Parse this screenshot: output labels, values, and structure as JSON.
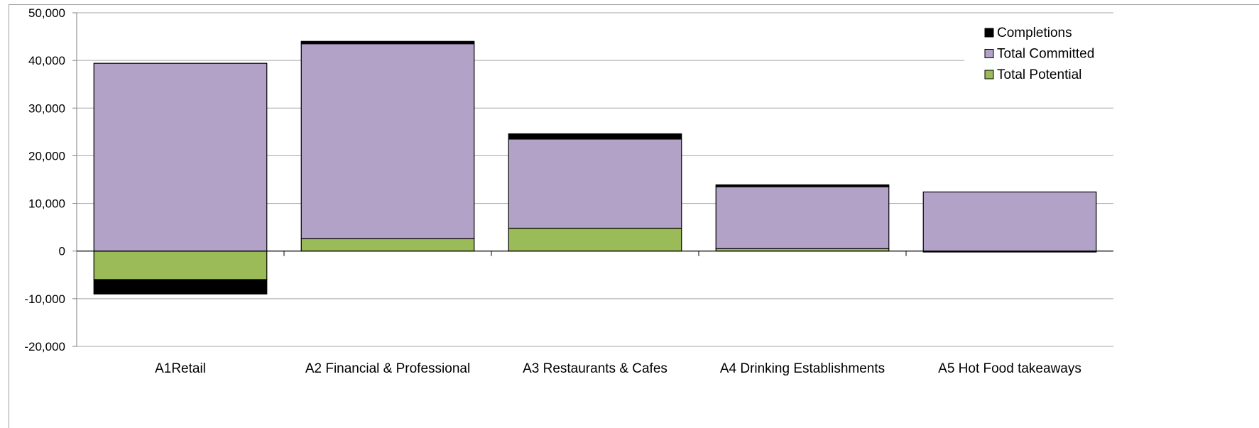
{
  "chart_data": {
    "type": "bar",
    "stacked": true,
    "categories": [
      "A1Retail",
      "A2 Financial & Professional",
      "A3 Restaurants & Cafes",
      "A4 Drinking Establishments",
      "A5 Hot Food takeaways"
    ],
    "series": [
      {
        "name": "Total Potential",
        "color": "#9bbb59",
        "values": [
          -6000,
          2600,
          4800,
          500,
          -200
        ]
      },
      {
        "name": "Total Committed",
        "color": "#b3a2c7",
        "values": [
          39400,
          40900,
          18700,
          13000,
          12400
        ]
      },
      {
        "name": "Completions",
        "color": "#000000",
        "values": [
          -3000,
          500,
          1100,
          400,
          0
        ]
      }
    ],
    "legend_order": [
      "Completions",
      "Total Committed",
      "Total Potential"
    ],
    "ylim": [
      -20000,
      50000
    ],
    "yticks": [
      {
        "value": 50000,
        "label": "50,000"
      },
      {
        "value": 40000,
        "label": "40,000"
      },
      {
        "value": 30000,
        "label": "30,000"
      },
      {
        "value": 20000,
        "label": "20,000"
      },
      {
        "value": 10000,
        "label": "10,000"
      },
      {
        "value": 0,
        "label": "0"
      },
      {
        "value": -10000,
        "label": "-10,000"
      },
      {
        "value": -20000,
        "label": "-20,000"
      }
    ],
    "grid": true,
    "legend_position": "top-right",
    "title": "",
    "xlabel": "",
    "ylabel": ""
  }
}
